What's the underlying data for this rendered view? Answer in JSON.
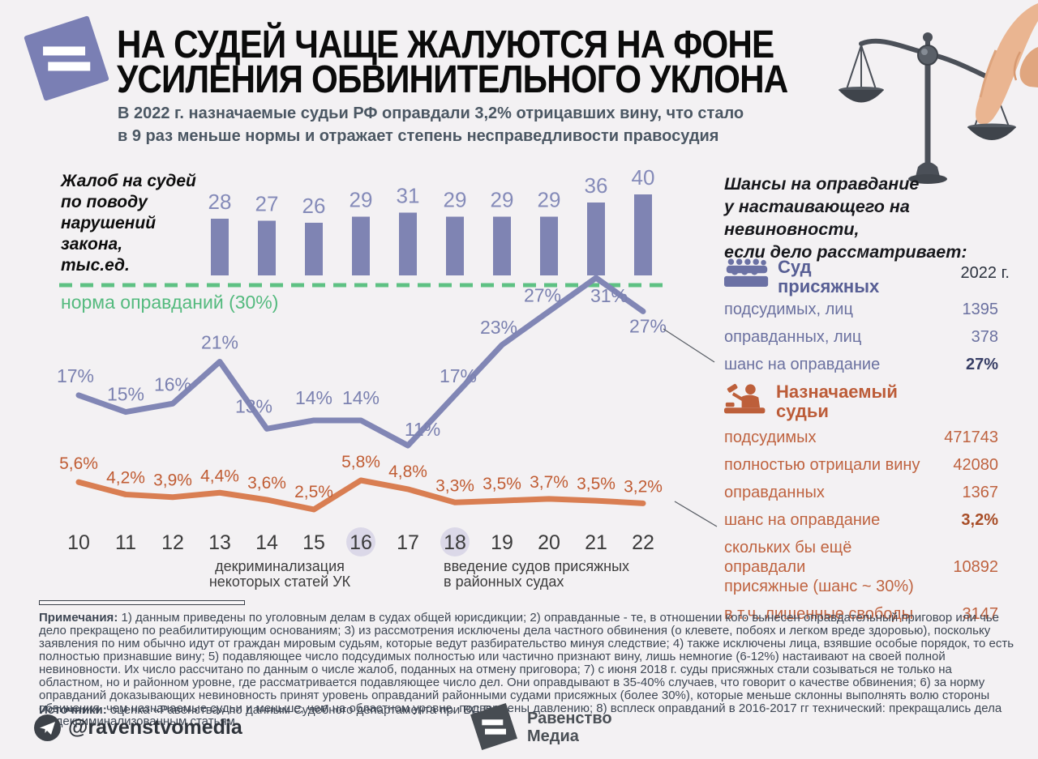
{
  "header": {
    "title_line1": "НА СУДЕЙ ЧАЩЕ ЖАЛУЮТСЯ НА ФОНЕ",
    "title_line2": "УСИЛЕНИЯ ОБВИНИТЕЛЬНОГО УКЛОНА",
    "subtitle_line1": "В 2022 г. назначаемые судьи РФ оправдали 3,2% отрицавших вину, что стало",
    "subtitle_line2": "в 9 раз меньше нормы и отражает степень несправедливости правосудия"
  },
  "chart_data": {
    "type": "combo-bar-line",
    "x_tick_labels": [
      "10",
      "11",
      "12",
      "13",
      "14",
      "15",
      "16",
      "17",
      "18",
      "19",
      "20",
      "21",
      "22"
    ],
    "highlighted_ticks": [
      "16",
      "18"
    ],
    "bar_series": {
      "label": "Жалоб на судей\nпо поводу\nнарушений\nзакона,\nтыс.ед.",
      "start_tick": "13",
      "values": [
        28,
        27,
        26,
        29,
        31,
        29,
        29,
        29,
        36,
        40
      ],
      "color": "#7f84b3"
    },
    "norm_line": {
      "value": 30,
      "label": "норма оправданий (30%)",
      "color": "#5ec183"
    },
    "line_series": [
      {
        "name": "шанс на оправдание: суд присяжных",
        "color": "#8186b5",
        "values": [
          17,
          15,
          16,
          21,
          13,
          14,
          14,
          11,
          17,
          23,
          27,
          31,
          27
        ],
        "point_labels": [
          "17%",
          "15%",
          "16%",
          "21%",
          "13%",
          "14%",
          "14%",
          "11%",
          "17%",
          "23%",
          "27%",
          "31%",
          "27%"
        ]
      },
      {
        "name": "шанс на оправдание: назначаемые судьи",
        "color": "#d97e52",
        "values": [
          5.6,
          4.2,
          3.9,
          4.4,
          3.6,
          2.5,
          5.8,
          4.8,
          3.3,
          3.5,
          3.7,
          3.5,
          3.2
        ],
        "point_labels": [
          "5,6%",
          "4,2%",
          "3,9%",
          "4,4%",
          "3,6%",
          "2,5%",
          "5,8%",
          "4,8%",
          "3,3%",
          "3,5%",
          "3,7%",
          "3,5%",
          "3,2%"
        ]
      }
    ],
    "annotations": [
      {
        "tick": "16",
        "text_line1": "декриминализация",
        "text_line2": "некоторых статей УК"
      },
      {
        "tick": "18",
        "text_line1": "введение судов присяжных",
        "text_line2": "в районных судах"
      }
    ]
  },
  "right_panel": {
    "heading": "Шансы на оправдание\nу настаивающего на невиновности,\nесли дело рассматривает:",
    "year_header": "2022 г.",
    "jury": {
      "title_line1": "Суд",
      "title_line2": "присяжных",
      "rows": [
        {
          "label": "подсудимых, лиц",
          "value": "1395"
        },
        {
          "label": "оправданных, лиц",
          "value": "378"
        },
        {
          "label": "шанс на оправдание",
          "value": "27%",
          "bold": true
        }
      ]
    },
    "judges": {
      "title_line1": "Назначаемый",
      "title_line2": "судьи",
      "rows": [
        {
          "label": "подсудимых",
          "value": "471743"
        },
        {
          "label": "полностью отрицали вину",
          "value": "42080"
        },
        {
          "label": "оправданных",
          "value": "1367"
        },
        {
          "label": "шанс на оправдание",
          "value": "3,2%",
          "bold": true
        },
        {
          "label": "скольких бы ещё оправдали\nприсяжные (шанс ~ 30%)",
          "value": "10892"
        },
        {
          "label": "в т.ч. лишенные свободы",
          "value": "3147"
        }
      ]
    }
  },
  "notes": {
    "prefix": "Примечания:",
    "text": " 1) данным приведены по уголовным делам в судах общей юрисдикции; 2) оправданные - те, в отношении кого вынесен оправдательный приговор или чье дело прекращено по реабилитирующим основаниям; 3) из рассмотрения исключены дела частного обвинения (о клевете, побоях и легком вреде здоровью), поскольку заявления по ним обычно идут от граждан мировым судьям, которые ведут разбирательство минуя следствие; 4) также исключены лица, взявшие особые порядок, то есть полностью признавшие вину; 5) подавляющее число подсудимых полностью или частично признают вину, лишь немногие (6-12%) настаивают на своей полной невиновности. Их число рассчитано по данным о числе жалоб, поданных на отмену приговора; 7) с июня 2018 г. суды присяжных стали созываться не только на областном, но и районном уровне, где рассматривается подавляющее число дел. Они оправдывают в 35-40% случаев, что говорит о качестве обвинения; 6) за норму оправданий доказывающих невиновность принят уровень оправданий районными судами присяжных (более 30%), которые меньше склонны выполнять волю стороны обвинения, чем назначаемые судьи и меньше, чем на областном уровне, подвержены давлению; 8) всплеск оправданий в 2016-2017 гг технический: прекращались дела по декриминализованным статьям."
  },
  "sources": {
    "prefix": "Источники:",
    "text": " оценка «Равенства» по данным Судебного департамента при ВС РФ"
  },
  "footer": {
    "telegram": "@ravenstvomedia",
    "logo_line1": "Равенство",
    "logo_line2": "Медиа"
  },
  "colors": {
    "background": "#f3f1f3",
    "purple": "#8186b5",
    "orange": "#d97e52",
    "green": "#5ec183",
    "brand_logo": "#7a7fb4"
  }
}
